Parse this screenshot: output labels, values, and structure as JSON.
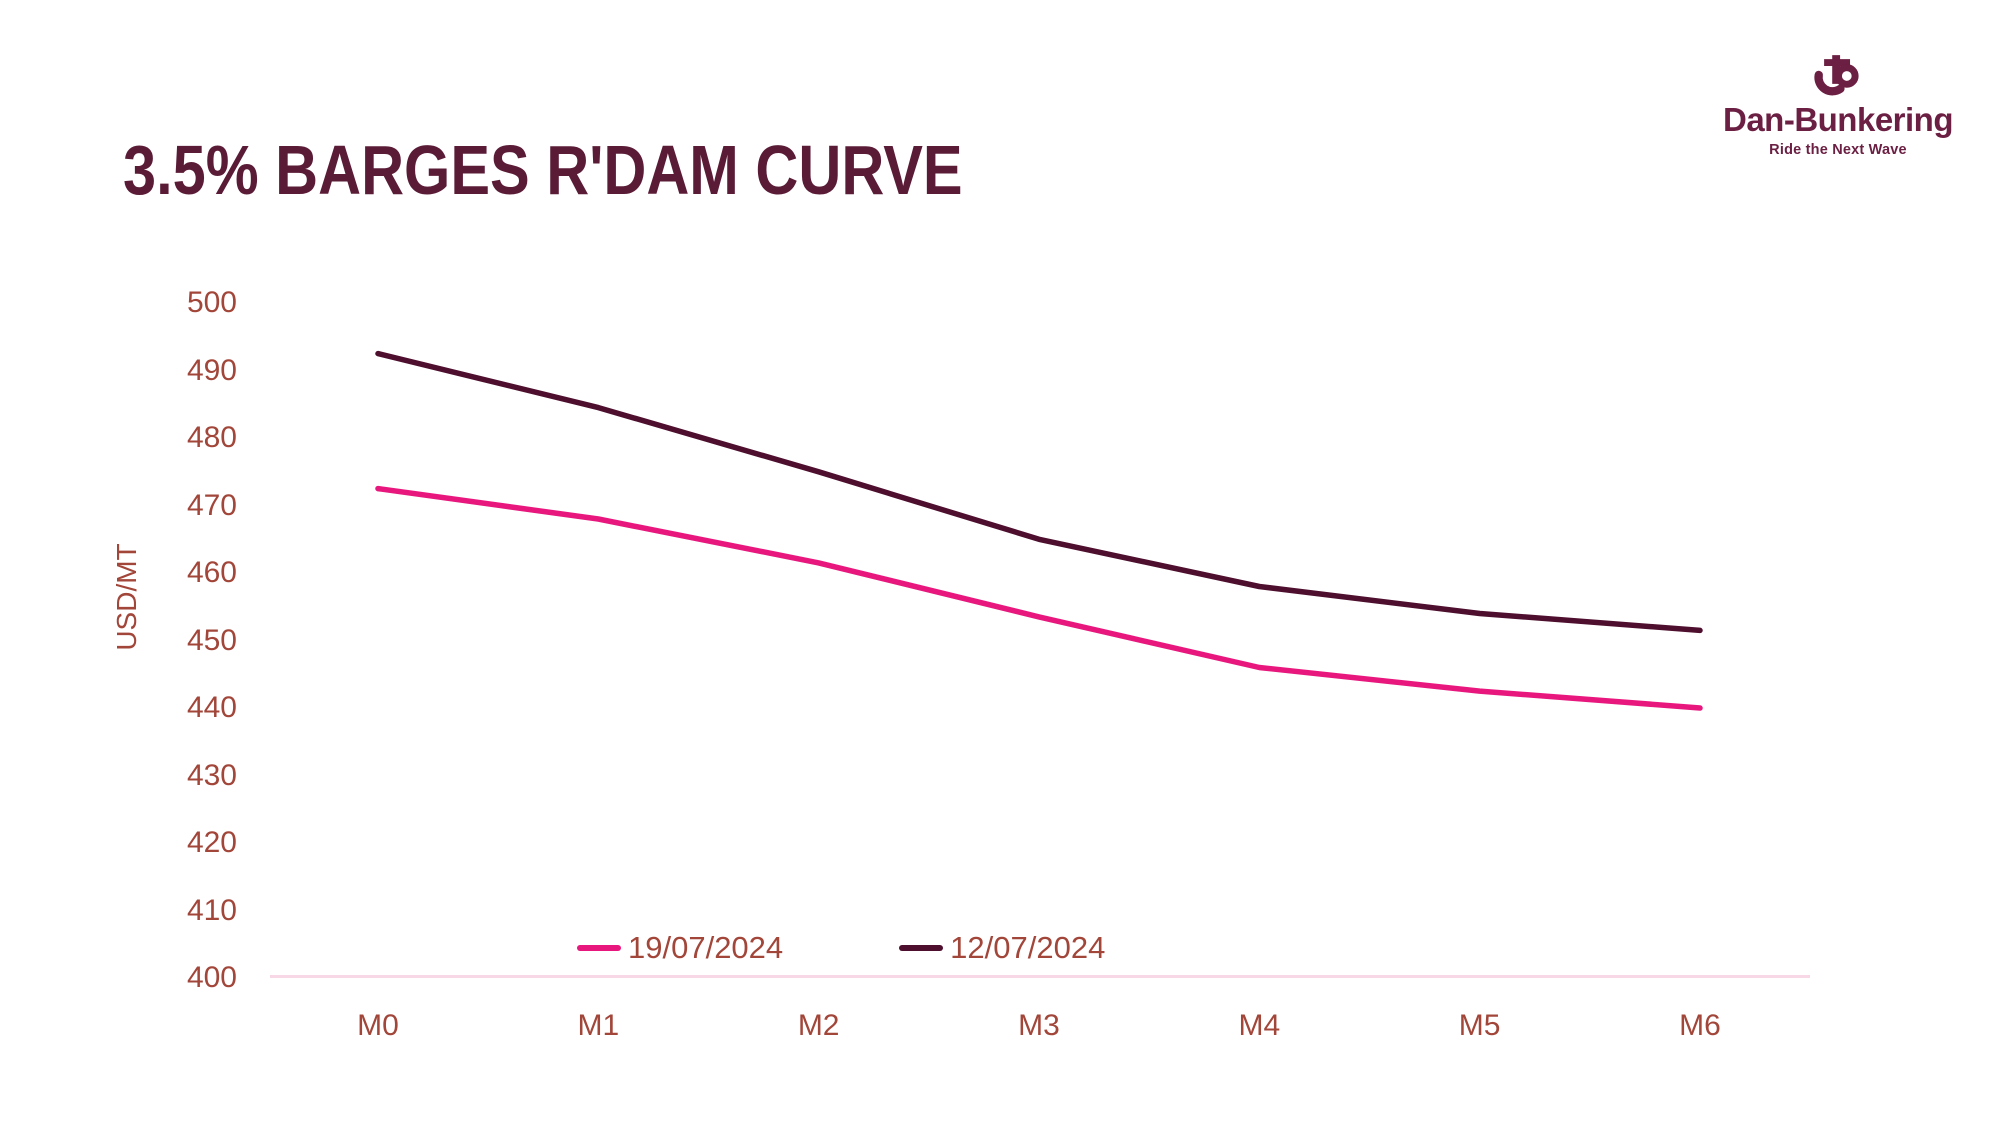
{
  "header": {
    "title": "3.5% BARGES R'DAM CURVE"
  },
  "logo": {
    "name": "Dan-Bunkering",
    "tagline": "Ride the Next Wave",
    "color": "#6B1F42"
  },
  "chart_data": {
    "type": "line",
    "title": "3.5% BARGES R'DAM CURVE",
    "categories": [
      "M0",
      "M1",
      "M2",
      "M3",
      "M4",
      "M5",
      "M6"
    ],
    "series": [
      {
        "name": "19/07/2024",
        "color": "#E8177D",
        "values": [
          472.5,
          468,
          461.5,
          453.5,
          446,
          442.5,
          440
        ]
      },
      {
        "name": "12/07/2024",
        "color": "#4E0E2E",
        "values": [
          492.5,
          484.5,
          475,
          465,
          458,
          454,
          451.5
        ]
      }
    ],
    "xlabel": "",
    "ylabel": "USD/MT",
    "ylim": [
      400,
      500
    ],
    "ytick_step": 10,
    "grid": false,
    "legend_position": "bottom-center"
  },
  "colors": {
    "title": "#5A1B36",
    "tick_label": "#A2463A",
    "axis_line": "#F8D7E7",
    "background": "#FFFFFF"
  }
}
